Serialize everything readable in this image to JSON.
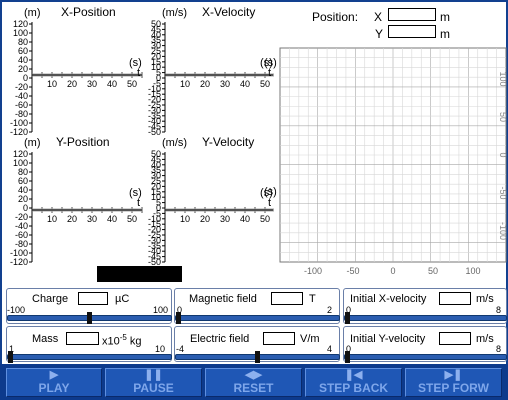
{
  "graphs": {
    "x_position": {
      "unit": "(m)",
      "title": "X-Position",
      "time_unit": "(s)",
      "time_label": "t",
      "y_ticks": [
        "120",
        "100",
        "80",
        "60",
        "40",
        "20",
        "0",
        "-20",
        "-40",
        "-60",
        "-80",
        "-100",
        "-120"
      ],
      "t_ticks": [
        "0",
        "10",
        "20",
        "30",
        "40",
        "50"
      ]
    },
    "x_velocity": {
      "unit": "(m/s)",
      "title": "X-Velocity",
      "time_unit": "(s)",
      "time_label": "t",
      "y_ticks": [
        "50",
        "45",
        "40",
        "35",
        "30",
        "25",
        "20",
        "15",
        "10",
        "5",
        "0",
        "-5",
        "-10",
        "-15",
        "-20",
        "-25",
        "-30",
        "-35",
        "-40",
        "-45",
        "-50"
      ],
      "t_ticks": [
        "0",
        "10",
        "20",
        "30",
        "40",
        "50"
      ]
    },
    "y_position": {
      "unit": "(m)",
      "title": "Y-Position",
      "time_unit": "(s)",
      "time_label": "t",
      "y_ticks": [
        "120",
        "100",
        "80",
        "60",
        "40",
        "20",
        "0",
        "-20",
        "-40",
        "-60",
        "-80",
        "-100",
        "-120"
      ],
      "t_ticks": [
        "0",
        "10",
        "20",
        "30",
        "40",
        "50"
      ]
    },
    "y_velocity": {
      "unit": "(m/s)",
      "title": "Y-Velocity",
      "time_unit": "(s)",
      "time_label": "t",
      "y_ticks": [
        "50",
        "45",
        "40",
        "35",
        "30",
        "25",
        "20",
        "15",
        "10",
        "5",
        "0",
        "-5",
        "-10",
        "-15",
        "-20",
        "-25",
        "-30",
        "-35",
        "-40",
        "-45",
        "-50"
      ],
      "t_ticks": [
        "0",
        "10",
        "20",
        "30",
        "40",
        "50"
      ]
    }
  },
  "position": {
    "label": "Position:",
    "x_label": "X",
    "x_value": "",
    "y_label": "Y",
    "y_value": "",
    "unit": "m"
  },
  "plane": {
    "x_ticks": [
      "-100",
      "-50",
      "0",
      "50",
      "100"
    ],
    "y_ticks": [
      "100",
      "50",
      "0",
      "-50",
      "-100"
    ],
    "axis_label": "(s)"
  },
  "controls": {
    "charge": {
      "label": "Charge",
      "value": "",
      "unit": "µC",
      "min": "-100",
      "max": "100",
      "level": 0.5
    },
    "magnetic_field": {
      "label": "Magnetic field",
      "value": "",
      "unit": "T",
      "min": "0",
      "max": "2",
      "level": 0.0
    },
    "initial_x_velocity": {
      "label": "Initial X-velocity",
      "value": "",
      "unit": "m/s",
      "min": "0",
      "max": "8",
      "level": 0.0
    },
    "mass": {
      "label": "Mass",
      "value": "",
      "unit_prefix": "x10",
      "unit_exp": "-5",
      "unit_suffix": " kg",
      "min": "1",
      "max": "10",
      "level": 0.0
    },
    "electric_field": {
      "label": "Electric field",
      "value": "",
      "unit": "V/m",
      "min": "-4",
      "max": "4",
      "level": 0.5
    },
    "initial_y_velocity": {
      "label": "Initial Y-velocity",
      "value": "",
      "unit": "m/s",
      "min": "0",
      "max": "8",
      "level": 0.0
    }
  },
  "buttons": [
    {
      "label": "PLAY",
      "icon": "play-icon"
    },
    {
      "label": "PAUSE",
      "icon": "pause-icon"
    },
    {
      "label": "RESET",
      "icon": "reset-icon"
    },
    {
      "label": "STEP BACK",
      "icon": "step-back-icon"
    },
    {
      "label": "STEP FORW",
      "icon": "step-forward-icon"
    }
  ],
  "colors": {
    "button_bar": "#0d3a8c",
    "button_face": "#1f57b5",
    "button_text": "#7ea6ea",
    "slider": "#2b5db0",
    "grid": "#c8c8c8"
  }
}
